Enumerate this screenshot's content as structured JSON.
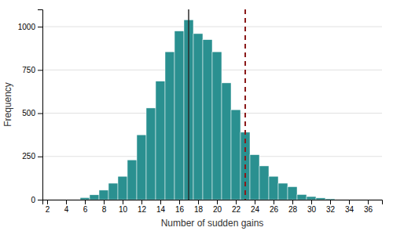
{
  "chart_data": {
    "type": "bar",
    "x": [
      6,
      7,
      8,
      9,
      10,
      11,
      12,
      13,
      14,
      15,
      16,
      17,
      18,
      19,
      20,
      21,
      22,
      23,
      24,
      25,
      26,
      27,
      28,
      29,
      30,
      31,
      32
    ],
    "values": [
      12,
      28,
      55,
      95,
      135,
      230,
      375,
      530,
      685,
      855,
      975,
      1040,
      960,
      925,
      855,
      675,
      520,
      390,
      260,
      195,
      135,
      95,
      75,
      30,
      18,
      10,
      5
    ],
    "color": "#2a9090",
    "xlabel": "Number of sudden gains",
    "ylabel": "Frequency",
    "xlim": [
      1.5,
      37.5
    ],
    "ylim": [
      0,
      1100
    ],
    "xticks": [
      2,
      4,
      6,
      8,
      10,
      12,
      14,
      16,
      18,
      20,
      22,
      24,
      26,
      28,
      30,
      32,
      34,
      36
    ],
    "yticks": [
      0,
      250,
      500,
      750,
      1000
    ],
    "grid": true,
    "vlines": [
      {
        "x": 17,
        "color": "#2b2b2b",
        "line_style": "solid"
      },
      {
        "x": 23,
        "color": "#8b1a1a",
        "line_style": "dashed"
      }
    ]
  }
}
